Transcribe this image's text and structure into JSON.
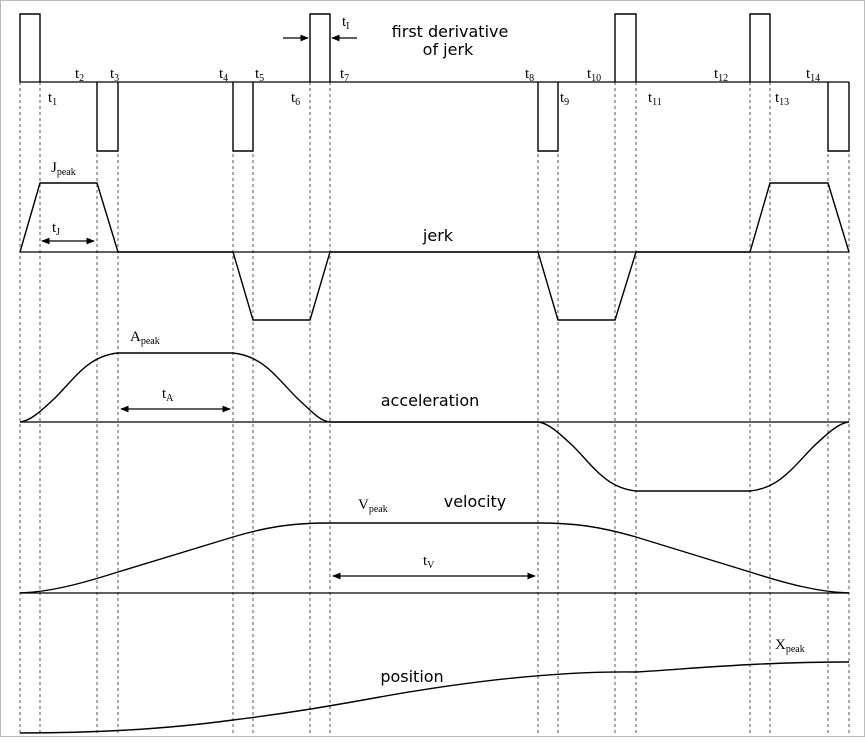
{
  "labels": {
    "title_line1": "first derivative",
    "title_line2": "of jerk",
    "jerk": "jerk",
    "acceleration": "acceleration",
    "velocity": "velocity",
    "position": "position"
  },
  "peaks": {
    "j": {
      "base": "J",
      "sub": "peak"
    },
    "a": {
      "base": "A",
      "sub": "peak"
    },
    "v": {
      "base": "V",
      "sub": "peak"
    },
    "x": {
      "base": "X",
      "sub": "peak"
    }
  },
  "intervals": {
    "tI": {
      "base": "t",
      "sub": "I"
    },
    "tJ": {
      "base": "t",
      "sub": "J"
    },
    "tA": {
      "base": "t",
      "sub": "A"
    },
    "tV": {
      "base": "t",
      "sub": "V"
    }
  },
  "times": [
    {
      "base": "t",
      "sub": "1"
    },
    {
      "base": "t",
      "sub": "2"
    },
    {
      "base": "t",
      "sub": "3"
    },
    {
      "base": "t",
      "sub": "4"
    },
    {
      "base": "t",
      "sub": "5"
    },
    {
      "base": "t",
      "sub": "6"
    },
    {
      "base": "t",
      "sub": "7"
    },
    {
      "base": "t",
      "sub": "8"
    },
    {
      "base": "t",
      "sub": "9"
    },
    {
      "base": "t",
      "sub": "10"
    },
    {
      "base": "t",
      "sub": "11"
    },
    {
      "base": "t",
      "sub": "12"
    },
    {
      "base": "t",
      "sub": "13"
    },
    {
      "base": "t",
      "sub": "14"
    }
  ]
}
